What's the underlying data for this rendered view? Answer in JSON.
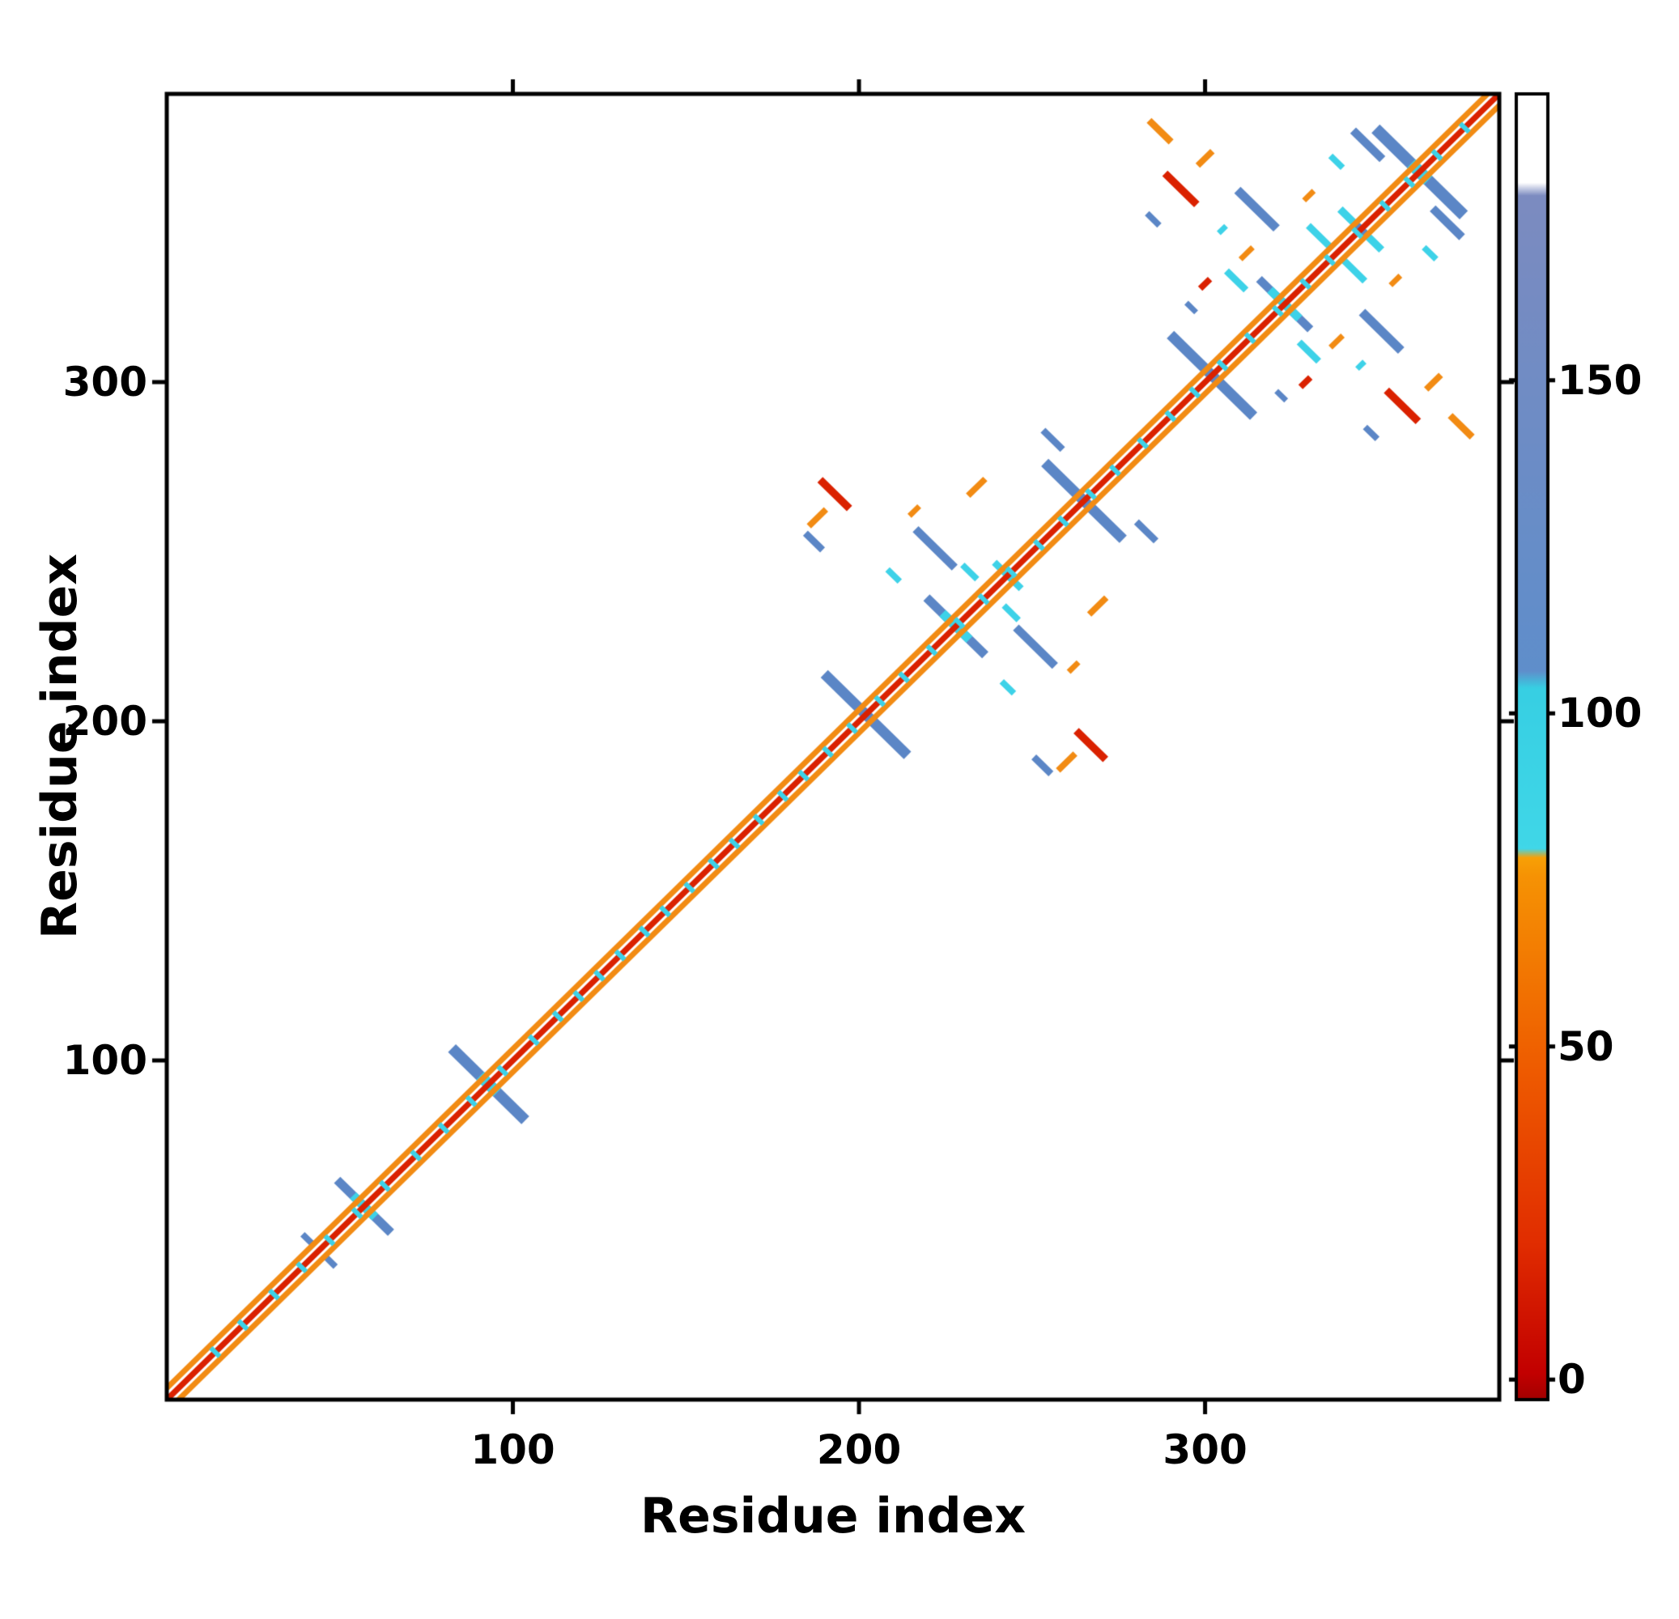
{
  "figure": {
    "background": "#ffffff"
  },
  "chart_data": {
    "type": "heatmap",
    "subtype": "protein residue-residue contact map with colorbar",
    "title": "",
    "xlabel": "Residue index",
    "ylabel": "Residue index",
    "x_range": [
      0,
      385
    ],
    "y_range": [
      0,
      385
    ],
    "x_ticks": [
      100,
      200,
      300
    ],
    "y_ticks": [
      100,
      200,
      300
    ],
    "grid": false,
    "symmetric": true,
    "palette": {
      "red": "#da2100",
      "dark_red": "#b30000",
      "orange": "#f28b13",
      "cyan": "#3dd2e8",
      "blue": "#5b86c6",
      "white": "#ffffff",
      "black": "#000000"
    },
    "colorbar": {
      "domain": [
        -3,
        193
      ],
      "ticks": [
        0,
        50,
        100,
        150
      ],
      "stops": [
        {
          "f": 0.0,
          "c": "#a30000"
        },
        {
          "f": 0.02,
          "c": "#c20000"
        },
        {
          "f": 0.12,
          "c": "#e12d00"
        },
        {
          "f": 0.25,
          "c": "#ee5a00"
        },
        {
          "f": 0.4,
          "c": "#f69204"
        },
        {
          "f": 0.415,
          "c": "#f8a006"
        },
        {
          "f": 0.422,
          "c": "#40d7e8"
        },
        {
          "f": 0.545,
          "c": "#37cfe3"
        },
        {
          "f": 0.558,
          "c": "#5f8ecb"
        },
        {
          "f": 0.922,
          "c": "#7c8bc0"
        },
        {
          "f": 0.932,
          "c": "#ffffff"
        },
        {
          "f": 1.0,
          "c": "#ffffff"
        }
      ]
    },
    "diagonal": {
      "core_color": "red",
      "core_width": 1.7,
      "flank_color": "orange",
      "flank_width": 1.6,
      "flank_offset_index": 3.4,
      "tick_color": "cyan",
      "tick_len": 3.6,
      "tick_width": 1.4,
      "cyan_ticks": [
        14,
        22,
        31,
        39,
        47,
        55,
        63,
        72,
        80,
        88,
        97,
        106,
        113,
        119,
        125,
        131,
        138,
        144,
        151,
        158,
        164,
        171,
        178,
        184,
        191,
        198,
        206,
        213,
        221,
        229,
        236,
        244,
        252,
        259,
        267,
        274,
        282,
        290,
        297,
        305,
        313,
        321,
        329,
        336,
        344,
        352,
        359,
        367,
        375
      ]
    },
    "crossings": [
      {
        "c": 57,
        "len": 22,
        "w": 2.6,
        "color": "blue",
        "center": "cyan",
        "center_len": 9
      },
      {
        "c": 93,
        "len": 30,
        "w": 3.2,
        "color": "blue",
        "center": "cyan",
        "center_len": 7
      },
      {
        "c": 202,
        "len": 34,
        "w": 3.0,
        "color": "blue"
      },
      {
        "c": 228,
        "len": 24,
        "w": 2.6,
        "color": "blue",
        "center": "cyan",
        "center_len": 11
      },
      {
        "c": 243,
        "len": 11,
        "w": 2.0,
        "color": "cyan"
      },
      {
        "c": 265,
        "len": 32,
        "w": 3.0,
        "color": "blue"
      },
      {
        "c": 302,
        "len": 34,
        "w": 3.0,
        "color": "blue"
      },
      {
        "c": 323,
        "len": 21,
        "w": 2.4,
        "color": "blue",
        "center": "cyan",
        "center_len": 12
      },
      {
        "c": 345,
        "len": 17,
        "w": 2.2,
        "color": "cyan",
        "center": "blue",
        "center_len": 6
      },
      {
        "c": 362,
        "len": 36,
        "w": 3.4,
        "color": "blue",
        "center": "cyan",
        "center_len": 7
      }
    ],
    "segments": [
      {
        "x": 41,
        "y": 47,
        "len": 5,
        "dir": "anti",
        "w": 1.8,
        "color": "blue"
      },
      {
        "x": 193,
        "y": 267,
        "len": 12,
        "dir": "anti",
        "w": 2.2,
        "color": "red"
      },
      {
        "x": 188,
        "y": 260,
        "len": 7,
        "dir": "par",
        "w": 1.8,
        "color": "orange"
      },
      {
        "x": 187,
        "y": 253,
        "len": 7,
        "dir": "anti",
        "w": 2.0,
        "color": "blue"
      },
      {
        "x": 210,
        "y": 243,
        "len": 5,
        "dir": "anti",
        "w": 1.8,
        "color": "cyan"
      },
      {
        "x": 216,
        "y": 262,
        "len": 4,
        "dir": "par",
        "w": 1.6,
        "color": "orange"
      },
      {
        "x": 222,
        "y": 251,
        "len": 16,
        "dir": "anti",
        "w": 2.4,
        "color": "blue"
      },
      {
        "x": 232,
        "y": 244,
        "len": 6,
        "dir": "anti",
        "w": 1.8,
        "color": "cyan"
      },
      {
        "x": 234,
        "y": 269,
        "len": 7,
        "dir": "par",
        "w": 1.8,
        "color": "orange"
      },
      {
        "x": 256,
        "y": 283,
        "len": 8,
        "dir": "anti",
        "w": 2.0,
        "color": "blue"
      },
      {
        "x": 285,
        "y": 348,
        "len": 5,
        "dir": "anti",
        "w": 1.8,
        "color": "blue"
      },
      {
        "x": 287,
        "y": 374,
        "len": 9,
        "dir": "anti",
        "w": 2.0,
        "color": "orange"
      },
      {
        "x": 293,
        "y": 357,
        "len": 13,
        "dir": "anti",
        "w": 2.2,
        "color": "red"
      },
      {
        "x": 300,
        "y": 366,
        "len": 6,
        "dir": "par",
        "w": 1.8,
        "color": "orange"
      },
      {
        "x": 296,
        "y": 322,
        "len": 4,
        "dir": "anti",
        "w": 1.6,
        "color": "blue"
      },
      {
        "x": 300,
        "y": 329,
        "len": 4,
        "dir": "par",
        "w": 1.8,
        "color": "red"
      },
      {
        "x": 309,
        "y": 330,
        "len": 8,
        "dir": "anti",
        "w": 2.0,
        "color": "cyan"
      },
      {
        "x": 312,
        "y": 338,
        "len": 5,
        "dir": "par",
        "w": 1.6,
        "color": "orange"
      },
      {
        "x": 315,
        "y": 351,
        "len": 16,
        "dir": "anti",
        "w": 2.6,
        "color": "blue"
      },
      {
        "x": 305,
        "y": 345,
        "len": 3,
        "dir": "par",
        "w": 1.6,
        "color": "cyan"
      },
      {
        "x": 330,
        "y": 355,
        "len": 4,
        "dir": "par",
        "w": 1.6,
        "color": "orange"
      },
      {
        "x": 333,
        "y": 343,
        "len": 9,
        "dir": "anti",
        "w": 2.0,
        "color": "cyan"
      },
      {
        "x": 338,
        "y": 365,
        "len": 5,
        "dir": "anti",
        "w": 1.8,
        "color": "cyan"
      },
      {
        "x": 347,
        "y": 370,
        "len": 12,
        "dir": "anti",
        "w": 2.4,
        "color": "blue"
      }
    ]
  }
}
